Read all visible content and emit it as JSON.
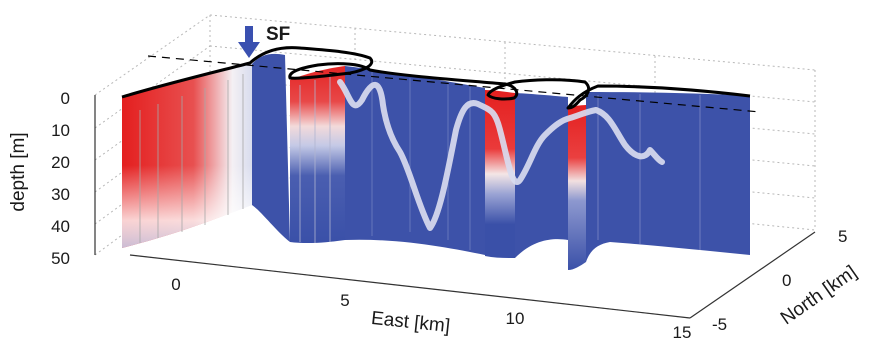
{
  "chart_data": {
    "type": "3d-section",
    "annotation": "SF",
    "z_axis": {
      "label": "depth [m]",
      "ticks": [
        "0",
        "10",
        "20",
        "30",
        "40",
        "50"
      ]
    },
    "x_axis": {
      "label": "East [km]",
      "ticks": [
        "0",
        "5",
        "10",
        "15"
      ]
    },
    "y_axis": {
      "label": "North [km]",
      "ticks": [
        "-5",
        "0",
        "5"
      ]
    },
    "colors": {
      "warm": "#e22222",
      "neutral": "#ffffff",
      "cold": "#3a50a8",
      "track": "#d9dcee",
      "coast": "#000000"
    }
  }
}
